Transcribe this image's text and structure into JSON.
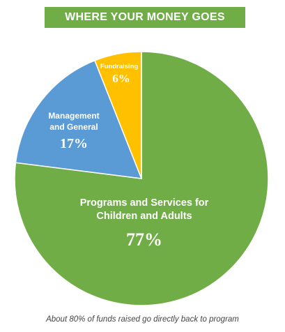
{
  "colors": {
    "banner_bg": "#70ad47",
    "programs": "#70ad47",
    "management": "#5b9bd5",
    "fundraising": "#ffc000"
  },
  "chart_data": {
    "type": "pie",
    "title": "WHERE YOUR MONEY GOES",
    "slices": [
      {
        "label": "Programs and Services for Children and Adults",
        "value": 77,
        "display": "77%"
      },
      {
        "label": "Management and General",
        "value": 17,
        "display": "17%"
      },
      {
        "label": "Fundraising",
        "value": 6,
        "display": "6%"
      }
    ],
    "caption": "About 80% of funds raised go directly back to program"
  }
}
